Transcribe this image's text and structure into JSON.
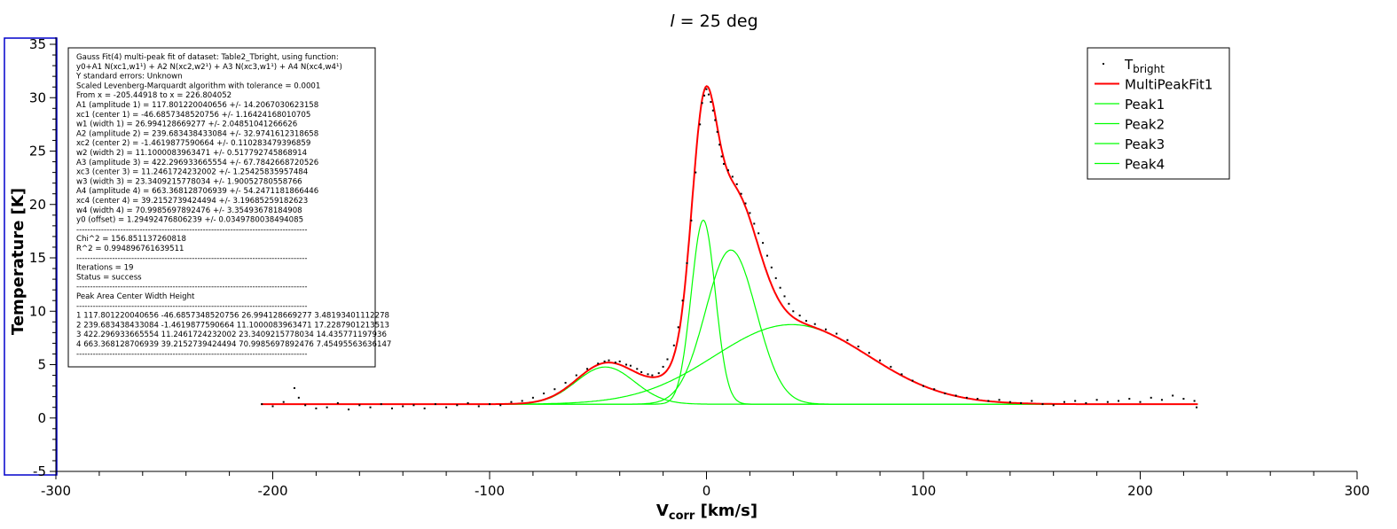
{
  "chart_data": {
    "type": "scatter",
    "title_italic": "l",
    "title_rest": " = 25 deg",
    "xlabel_main": "V",
    "xlabel_sub": "corr",
    "xlabel_unit": " [km/s]",
    "ylabel": "Temperature [K]",
    "xlim": [
      -300,
      300
    ],
    "ylim": [
      -5,
      35
    ],
    "xticks": [
      -300,
      -200,
      -100,
      0,
      100,
      200,
      300
    ],
    "yticks": [
      -5,
      0,
      5,
      10,
      15,
      20,
      25,
      30,
      35
    ],
    "xtick_labels": [
      "-300",
      "-200",
      "-100",
      "0",
      "100",
      "200",
      "300"
    ],
    "ytick_labels": [
      "-5",
      "0",
      "5",
      "10",
      "15",
      "20",
      "25",
      "30",
      "35"
    ],
    "grid": false,
    "legend_position": "top-right",
    "legend": [
      {
        "name_main": "T",
        "name_sub": "bright",
        "style": "points",
        "color": "#000000"
      },
      {
        "name_main": "MultiPeakFit1",
        "name_sub": "",
        "style": "line",
        "color": "#ff0000"
      },
      {
        "name_main": "Peak1",
        "name_sub": "",
        "style": "line",
        "color": "#00ff00"
      },
      {
        "name_main": "Peak2",
        "name_sub": "",
        "style": "line",
        "color": "#00ff00"
      },
      {
        "name_main": "Peak3",
        "name_sub": "",
        "style": "line",
        "color": "#00ff00"
      },
      {
        "name_main": "Peak4",
        "name_sub": "",
        "style": "line",
        "color": "#00ff00"
      }
    ],
    "fit": {
      "offset": 1.29492476806239,
      "peaks": [
        {
          "name": "Peak1",
          "area": 117.801220040656,
          "center": -46.6857348520756,
          "width": 26.994128669277
        },
        {
          "name": "Peak2",
          "area": 239.683438433084,
          "center": -1.4619877590664,
          "width": 11.1000083963471
        },
        {
          "name": "Peak3",
          "area": 422.296933665554,
          "center": 11.2461724232002,
          "width": 23.3409215778034
        },
        {
          "name": "Peak4",
          "area": 663.368128706939,
          "center": 39.2152739424494,
          "width": 70.9985697892476
        }
      ]
    },
    "data_x_range": [
      -205.44918,
      226.804052
    ],
    "data_points": [
      [
        -205,
        1.3
      ],
      [
        -200,
        1.1
      ],
      [
        -195,
        1.5
      ],
      [
        -190,
        2.8
      ],
      [
        -188,
        1.9
      ],
      [
        -185,
        1.2
      ],
      [
        -180,
        0.9
      ],
      [
        -175,
        1.0
      ],
      [
        -170,
        1.4
      ],
      [
        -165,
        0.8
      ],
      [
        -160,
        1.2
      ],
      [
        -155,
        1.0
      ],
      [
        -150,
        1.3
      ],
      [
        -145,
        0.9
      ],
      [
        -140,
        1.1
      ],
      [
        -135,
        1.2
      ],
      [
        -130,
        0.9
      ],
      [
        -125,
        1.3
      ],
      [
        -120,
        1.0
      ],
      [
        -115,
        1.2
      ],
      [
        -110,
        1.4
      ],
      [
        -105,
        1.1
      ],
      [
        -100,
        1.3
      ],
      [
        -95,
        1.2
      ],
      [
        -90,
        1.5
      ],
      [
        -85,
        1.6
      ],
      [
        -80,
        1.9
      ],
      [
        -75,
        2.3
      ],
      [
        -70,
        2.7
      ],
      [
        -65,
        3.3
      ],
      [
        -60,
        4.0
      ],
      [
        -55,
        4.6
      ],
      [
        -50,
        5.1
      ],
      [
        -47,
        5.3
      ],
      [
        -45,
        5.4
      ],
      [
        -42,
        5.2
      ],
      [
        -40,
        5.3
      ],
      [
        -37,
        5.0
      ],
      [
        -35,
        4.9
      ],
      [
        -32,
        4.6
      ],
      [
        -30,
        4.3
      ],
      [
        -27,
        4.1
      ],
      [
        -25,
        4.0
      ],
      [
        -22,
        4.2
      ],
      [
        -20,
        4.8
      ],
      [
        -18,
        5.5
      ],
      [
        -15,
        6.8
      ],
      [
        -13,
        8.5
      ],
      [
        -11,
        11.0
      ],
      [
        -9,
        14.5
      ],
      [
        -7,
        18.5
      ],
      [
        -5,
        23.0
      ],
      [
        -3,
        27.5
      ],
      [
        -2,
        29.5
      ],
      [
        -1,
        30.2
      ],
      [
        0,
        30.8
      ],
      [
        1,
        30.3
      ],
      [
        2,
        29.6
      ],
      [
        3,
        28.8
      ],
      [
        4,
        27.9
      ],
      [
        5,
        26.8
      ],
      [
        6,
        25.6
      ],
      [
        7,
        24.5
      ],
      [
        8,
        23.8
      ],
      [
        10,
        23.2
      ],
      [
        12,
        22.6
      ],
      [
        14,
        21.9
      ],
      [
        16,
        21.0
      ],
      [
        18,
        20.1
      ],
      [
        20,
        19.2
      ],
      [
        22,
        18.2
      ],
      [
        24,
        17.3
      ],
      [
        26,
        16.4
      ],
      [
        28,
        15.2
      ],
      [
        30,
        14.1
      ],
      [
        32,
        13.1
      ],
      [
        34,
        12.2
      ],
      [
        36,
        11.4
      ],
      [
        38,
        10.7
      ],
      [
        40,
        10.0
      ],
      [
        43,
        9.6
      ],
      [
        46,
        9.1
      ],
      [
        50,
        8.8
      ],
      [
        55,
        8.3
      ],
      [
        60,
        7.9
      ],
      [
        65,
        7.3
      ],
      [
        70,
        6.7
      ],
      [
        75,
        6.1
      ],
      [
        80,
        5.4
      ],
      [
        85,
        4.8
      ],
      [
        90,
        4.1
      ],
      [
        95,
        3.5
      ],
      [
        100,
        3.0
      ],
      [
        105,
        2.7
      ],
      [
        110,
        2.3
      ],
      [
        115,
        2.1
      ],
      [
        120,
        1.9
      ],
      [
        125,
        1.8
      ],
      [
        130,
        1.6
      ],
      [
        135,
        1.7
      ],
      [
        140,
        1.5
      ],
      [
        145,
        1.4
      ],
      [
        150,
        1.6
      ],
      [
        155,
        1.3
      ],
      [
        160,
        1.2
      ],
      [
        165,
        1.5
      ],
      [
        170,
        1.6
      ],
      [
        175,
        1.4
      ],
      [
        180,
        1.7
      ],
      [
        185,
        1.5
      ],
      [
        190,
        1.6
      ],
      [
        195,
        1.8
      ],
      [
        200,
        1.5
      ],
      [
        205,
        1.9
      ],
      [
        210,
        1.7
      ],
      [
        215,
        2.1
      ],
      [
        220,
        1.8
      ],
      [
        225,
        1.6
      ],
      [
        226,
        1.0
      ]
    ]
  },
  "report": {
    "lines": [
      "Gauss Fit(4) multi-peak fit of dataset: Table2_Tbright, using function:",
      "y0+A1 N(xc1,w1¹) + A2 N(xc2,w2¹) + A3 N(xc3,w1¹) + A4 N(xc4,w4¹)",
      "Y standard errors: Unknown",
      "Scaled Levenberg-Marquardt algorithm with tolerance = 0.0001",
      "From x = -205.44918 to x = 226.804052",
      "A1 (amplitude 1) = 117.801220040656 +/- 14.2067030623158",
      "xc1 (center 1) = -46.6857348520756 +/- 1.16424168010705",
      "w1 (width 1) = 26.994128669277 +/- 2.04851041266626",
      "A2 (amplitude 2) = 239.683438433084 +/- 32.9741612318658",
      "xc2 (center 2) = -1.4619877590664 +/- 0.110283479396859",
      "w2 (width 2) = 11.1000083963471 +/- 0.517792745868914",
      "A3 (amplitude 3) = 422.296933665554 +/- 67.7842668720526",
      "xc3 (center 3) = 11.2461724232002 +/- 1.25425835957484",
      "w3 (width 3) = 23.3409215778034 +/- 1.90052780558766",
      "A4 (amplitude 4) = 663.368128706939 +/- 54.2471181866446",
      "xc4 (center 4) = 39.2152739424494 +/- 3.19685259182623",
      "w4 (width 4) = 70.9985697892476 +/- 3.35493678184908",
      "y0 (offset) = 1.29492476806239 +/- 0.0349780038494085",
      "------------------------------------------------------------------------------------",
      "Chi^2 = 156.851137260818",
      "R^2 = 0.994896761639511",
      "------------------------------------------------------------------------------------",
      "Iterations = 19",
      "Status = success",
      "------------------------------------------------------------------------------------",
      "Peak Area Center Width Height",
      "------------------------------------------------------------------------------------",
      "1 117.801220040656 -46.6857348520756 26.994128669277 3.48193401112278",
      "2 239.683438433084 -1.4619877590664 11.1000083963471 17.2287901213513",
      "3 422.296933665554 11.2461724232002 23.3409215778034 14.435771197936",
      "4 663.368128706939 39.2152739424494 70.9985697892476 7.45495563636147",
      "------------------------------------------------------------------------------------"
    ]
  },
  "colors": {
    "fit": "#ff0000",
    "peaks": "#00ff00",
    "points": "#000000",
    "axis_highlight": "#0000cc"
  }
}
